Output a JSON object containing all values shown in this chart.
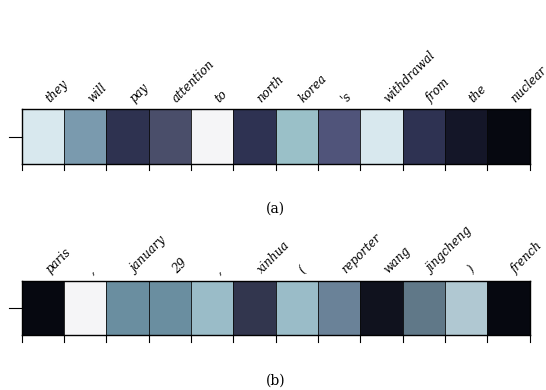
{
  "panel_a": {
    "labels": [
      "they",
      "will",
      "pay",
      "attention",
      "to",
      "north",
      "korea",
      "'s",
      "withdrawal",
      "from",
      "the",
      "nuclear"
    ],
    "colors": [
      "#d8e8ee",
      "#7a9aae",
      "#2e3250",
      "#4a4e6a",
      "#f5f5f7",
      "#2e3252",
      "#9ac0c8",
      "#50547a",
      "#d8e8ee",
      "#2e3252",
      "#141628",
      "#060810"
    ],
    "caption": "(a)"
  },
  "panel_b": {
    "labels": [
      "paris",
      ",",
      "january",
      "29",
      ",",
      "xinhua",
      "(",
      "reporter",
      "wang",
      "jingcheng",
      ")",
      "french"
    ],
    "colors": [
      "#060810",
      "#f5f5f7",
      "#6a8ea0",
      "#6a8ea0",
      "#9abcc8",
      "#32364e",
      "#9abcc8",
      "#6a8298",
      "#10121e",
      "#607888",
      "#b0c8d2",
      "#060810"
    ],
    "caption": "(b)"
  },
  "figsize": [
    5.46,
    3.9
  ],
  "dpi": 100,
  "label_fontsize": 8.5,
  "caption_fontsize": 10
}
